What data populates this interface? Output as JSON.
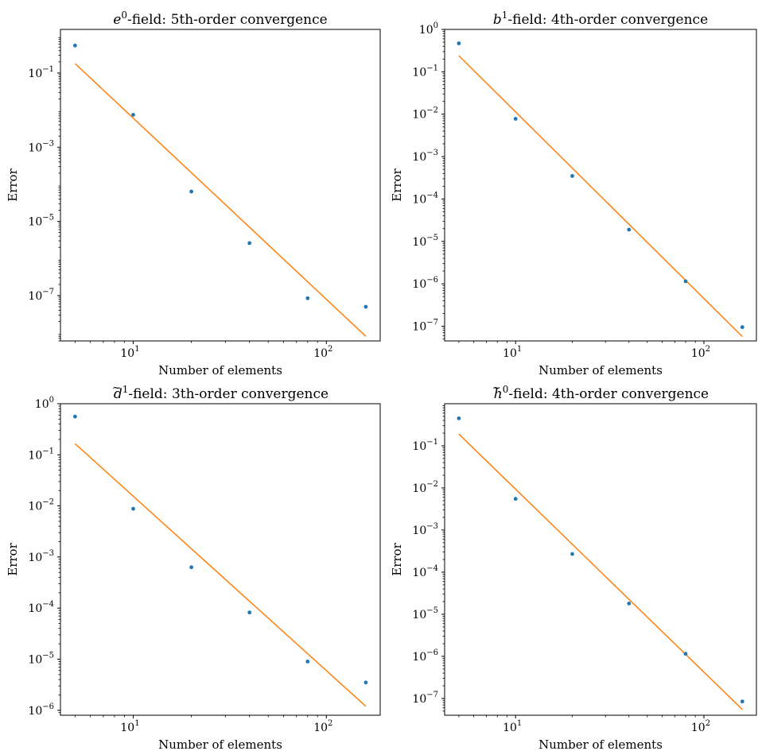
{
  "colors": {
    "points": "#1f77b4",
    "fit_line": "#ff7f0e",
    "axes": "#000000"
  },
  "chart_data": [
    {
      "type": "scatter",
      "title_symbol": "e",
      "title_accent": "",
      "title_sup": "0",
      "title_rest": "-field: 5th-order convergence",
      "xlabel": "Number of elements",
      "ylabel": "Error",
      "xscale": "log",
      "yscale": "log",
      "xlim": [
        4.2,
        190
      ],
      "ylim": [
        6e-09,
        1.5
      ],
      "xticks": [
        {
          "base": "10",
          "exp": "1",
          "v": 10
        },
        {
          "base": "10",
          "exp": "2",
          "v": 100
        }
      ],
      "yticks": [
        {
          "base": "10",
          "exp": "−1",
          "v": 0.1
        },
        {
          "base": "10",
          "exp": "−3",
          "v": 0.001
        },
        {
          "base": "10",
          "exp": "−5",
          "v": 1e-05
        },
        {
          "base": "10",
          "exp": "−7",
          "v": 1e-07
        }
      ],
      "series": [
        {
          "kind": "points",
          "x": [
            5,
            10,
            20,
            40,
            80,
            160
          ],
          "y": [
            0.55,
            0.0075,
            6.4e-05,
            2.6e-06,
            8.5e-08,
            5e-08
          ]
        },
        {
          "kind": "line",
          "x": [
            5,
            160
          ],
          "y": [
            0.18,
            8e-09
          ]
        }
      ],
      "grid": false
    },
    {
      "type": "scatter",
      "title_symbol": "b",
      "title_accent": "",
      "title_sup": "1",
      "title_rest": "-field: 4th-order convergence",
      "xlabel": "Number of elements",
      "ylabel": "Error",
      "xscale": "log",
      "yscale": "log",
      "xlim": [
        4.2,
        190
      ],
      "ylim": [
        4.5e-08,
        1.0
      ],
      "xticks": [
        {
          "base": "10",
          "exp": "1",
          "v": 10
        },
        {
          "base": "10",
          "exp": "2",
          "v": 100
        }
      ],
      "yticks": [
        {
          "base": "10",
          "exp": "0",
          "v": 1
        },
        {
          "base": "10",
          "exp": "−1",
          "v": 0.1
        },
        {
          "base": "10",
          "exp": "−2",
          "v": 0.01
        },
        {
          "base": "10",
          "exp": "−3",
          "v": 0.001
        },
        {
          "base": "10",
          "exp": "−4",
          "v": 0.0001
        },
        {
          "base": "10",
          "exp": "−5",
          "v": 1e-05
        },
        {
          "base": "10",
          "exp": "−6",
          "v": 1e-06
        },
        {
          "base": "10",
          "exp": "−7",
          "v": 1e-07
        }
      ],
      "series": [
        {
          "kind": "points",
          "x": [
            5,
            10,
            20,
            40,
            80,
            160
          ],
          "y": [
            0.47,
            0.0078,
            0.00035,
            1.9e-05,
            1.15e-06,
            9.5e-08
          ]
        },
        {
          "kind": "line",
          "x": [
            5,
            160
          ],
          "y": [
            0.24,
            5.7e-08
          ]
        }
      ],
      "grid": false
    },
    {
      "type": "scatter",
      "title_symbol": "d",
      "title_accent": "~",
      "title_sup": "1",
      "title_rest": "-field: 3th-order convergence",
      "xlabel": "Number of elements",
      "ylabel": "Error",
      "xscale": "log",
      "yscale": "log",
      "xlim": [
        4.2,
        190
      ],
      "ylim": [
        8e-07,
        1.0
      ],
      "xticks": [
        {
          "base": "10",
          "exp": "1",
          "v": 10
        },
        {
          "base": "10",
          "exp": "2",
          "v": 100
        }
      ],
      "yticks": [
        {
          "base": "10",
          "exp": "0",
          "v": 1
        },
        {
          "base": "10",
          "exp": "−1",
          "v": 0.1
        },
        {
          "base": "10",
          "exp": "−2",
          "v": 0.01
        },
        {
          "base": "10",
          "exp": "−3",
          "v": 0.001
        },
        {
          "base": "10",
          "exp": "−4",
          "v": 0.0001
        },
        {
          "base": "10",
          "exp": "−5",
          "v": 1e-05
        },
        {
          "base": "10",
          "exp": "−6",
          "v": 1e-06
        }
      ],
      "series": [
        {
          "kind": "points",
          "x": [
            5,
            10,
            20,
            40,
            80,
            160
          ],
          "y": [
            0.56,
            0.0088,
            0.00063,
            8.2e-05,
            9e-06,
            3.5e-06
          ]
        },
        {
          "kind": "line",
          "x": [
            5,
            160
          ],
          "y": [
            0.165,
            1.2e-06
          ]
        }
      ],
      "grid": false
    },
    {
      "type": "scatter",
      "title_symbol": "h",
      "title_accent": "~",
      "title_sup": "0",
      "title_rest": "-field: 4th-order convergence",
      "xlabel": "Number of elements",
      "ylabel": "Error",
      "xscale": "log",
      "yscale": "log",
      "xlim": [
        4.2,
        190
      ],
      "ylim": [
        4e-08,
        1.0
      ],
      "xticks": [
        {
          "base": "10",
          "exp": "1",
          "v": 10
        },
        {
          "base": "10",
          "exp": "2",
          "v": 100
        }
      ],
      "yticks": [
        {
          "base": "10",
          "exp": "−1",
          "v": 0.1
        },
        {
          "base": "10",
          "exp": "−2",
          "v": 0.01
        },
        {
          "base": "10",
          "exp": "−3",
          "v": 0.001
        },
        {
          "base": "10",
          "exp": "−4",
          "v": 0.0001
        },
        {
          "base": "10",
          "exp": "−5",
          "v": 1e-05
        },
        {
          "base": "10",
          "exp": "−6",
          "v": 1e-06
        },
        {
          "base": "10",
          "exp": "−7",
          "v": 1e-07
        }
      ],
      "series": [
        {
          "kind": "points",
          "x": [
            5,
            10,
            20,
            40,
            80,
            160
          ],
          "y": [
            0.45,
            0.0055,
            0.00027,
            1.8e-05,
            1.15e-06,
            8.5e-08
          ]
        },
        {
          "kind": "line",
          "x": [
            5,
            160
          ],
          "y": [
            0.19,
            5.5e-08
          ]
        }
      ],
      "grid": false
    }
  ]
}
